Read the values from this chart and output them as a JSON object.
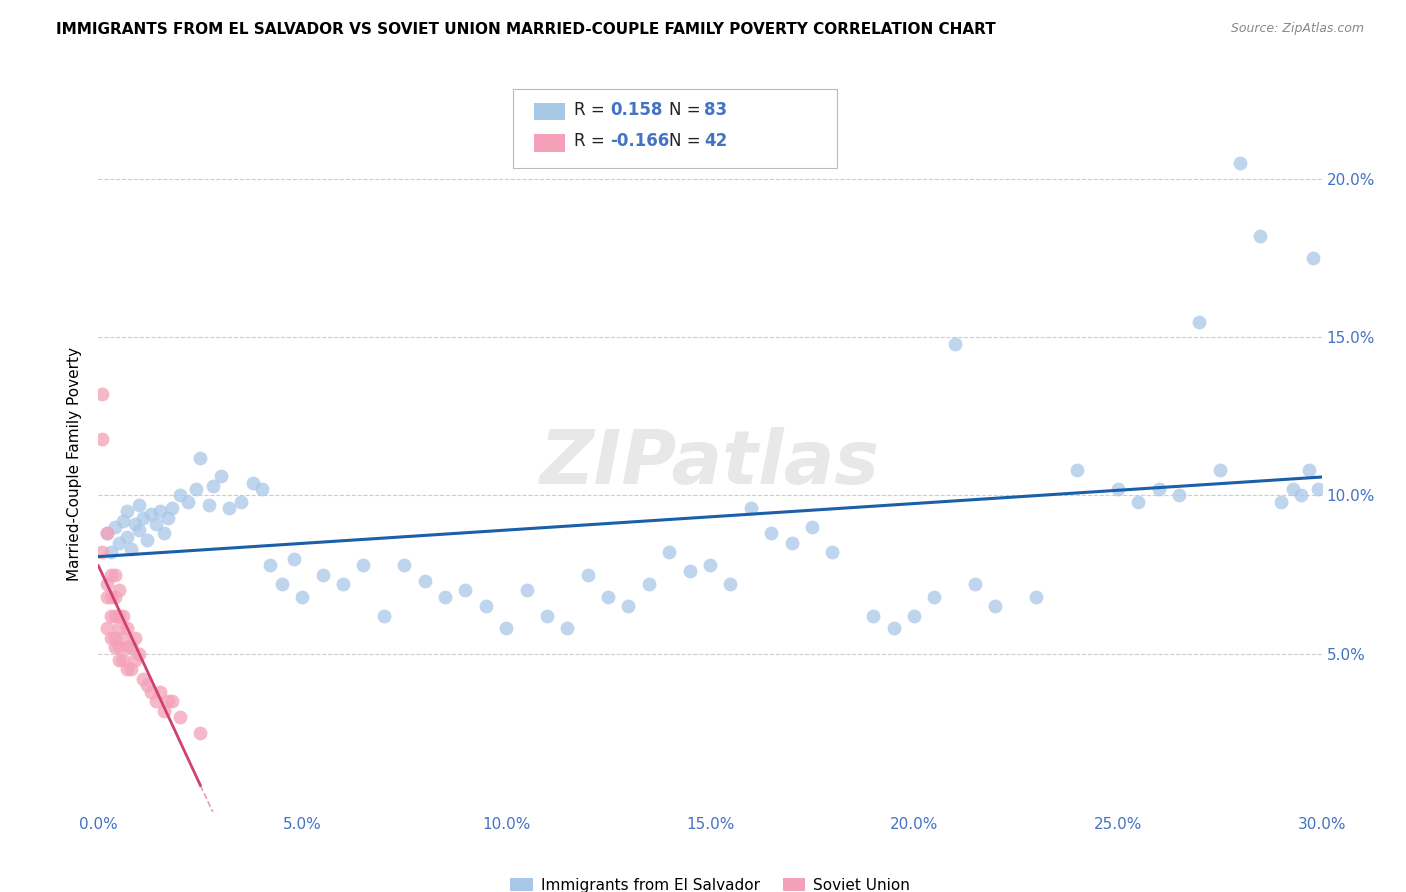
{
  "title": "IMMIGRANTS FROM EL SALVADOR VS SOVIET UNION MARRIED-COUPLE FAMILY POVERTY CORRELATION CHART",
  "source": "Source: ZipAtlas.com",
  "tick_color": "#4472c4",
  "ylabel": "Married-Couple Family Poverty",
  "xlim": [
    0.0,
    0.3
  ],
  "ylim": [
    0.0,
    0.22
  ],
  "xticks": [
    0.0,
    0.05,
    0.1,
    0.15,
    0.2,
    0.25,
    0.3
  ],
  "yticks": [
    0.05,
    0.1,
    0.15,
    0.2
  ],
  "ytick_labels": [
    "5.0%",
    "10.0%",
    "15.0%",
    "20.0%"
  ],
  "xtick_labels": [
    "0.0%",
    "5.0%",
    "10.0%",
    "15.0%",
    "20.0%",
    "25.0%",
    "30.0%"
  ],
  "color_blue": "#a8c8e8",
  "color_pink": "#f4a0b8",
  "line_blue": "#1a5fa8",
  "line_pink": "#d04070",
  "background": "#ffffff",
  "grid_color": "#cccccc",
  "watermark": "ZIPatlas",
  "legend_r1_val": "0.158",
  "legend_n1_val": "83",
  "legend_r2_val": "-0.166",
  "legend_n2_val": "42",
  "el_salvador_x": [
    0.002,
    0.003,
    0.004,
    0.005,
    0.006,
    0.007,
    0.007,
    0.008,
    0.009,
    0.01,
    0.01,
    0.011,
    0.012,
    0.013,
    0.014,
    0.015,
    0.016,
    0.017,
    0.018,
    0.02,
    0.022,
    0.024,
    0.025,
    0.027,
    0.028,
    0.03,
    0.032,
    0.035,
    0.038,
    0.04,
    0.042,
    0.045,
    0.048,
    0.05,
    0.055,
    0.06,
    0.065,
    0.07,
    0.075,
    0.08,
    0.085,
    0.09,
    0.095,
    0.1,
    0.105,
    0.11,
    0.115,
    0.12,
    0.125,
    0.13,
    0.135,
    0.14,
    0.145,
    0.15,
    0.155,
    0.16,
    0.165,
    0.17,
    0.175,
    0.18,
    0.19,
    0.195,
    0.2,
    0.205,
    0.21,
    0.215,
    0.22,
    0.23,
    0.24,
    0.25,
    0.255,
    0.26,
    0.265,
    0.27,
    0.275,
    0.28,
    0.285,
    0.29,
    0.293,
    0.295,
    0.297,
    0.298,
    0.299
  ],
  "el_salvador_y": [
    0.088,
    0.082,
    0.09,
    0.085,
    0.092,
    0.087,
    0.095,
    0.083,
    0.091,
    0.089,
    0.097,
    0.093,
    0.086,
    0.094,
    0.091,
    0.095,
    0.088,
    0.093,
    0.096,
    0.1,
    0.098,
    0.102,
    0.112,
    0.097,
    0.103,
    0.106,
    0.096,
    0.098,
    0.104,
    0.102,
    0.078,
    0.072,
    0.08,
    0.068,
    0.075,
    0.072,
    0.078,
    0.062,
    0.078,
    0.073,
    0.068,
    0.07,
    0.065,
    0.058,
    0.07,
    0.062,
    0.058,
    0.075,
    0.068,
    0.065,
    0.072,
    0.082,
    0.076,
    0.078,
    0.072,
    0.096,
    0.088,
    0.085,
    0.09,
    0.082,
    0.062,
    0.058,
    0.062,
    0.068,
    0.148,
    0.072,
    0.065,
    0.068,
    0.108,
    0.102,
    0.098,
    0.102,
    0.1,
    0.155,
    0.108,
    0.205,
    0.182,
    0.098,
    0.102,
    0.1,
    0.108,
    0.175,
    0.102
  ],
  "soviet_x": [
    0.001,
    0.001,
    0.001,
    0.002,
    0.002,
    0.002,
    0.002,
    0.003,
    0.003,
    0.003,
    0.003,
    0.004,
    0.004,
    0.004,
    0.004,
    0.004,
    0.005,
    0.005,
    0.005,
    0.005,
    0.005,
    0.006,
    0.006,
    0.006,
    0.007,
    0.007,
    0.007,
    0.008,
    0.008,
    0.009,
    0.009,
    0.01,
    0.011,
    0.012,
    0.013,
    0.014,
    0.015,
    0.016,
    0.017,
    0.018,
    0.02,
    0.025
  ],
  "soviet_y": [
    0.132,
    0.118,
    0.082,
    0.088,
    0.072,
    0.068,
    0.058,
    0.075,
    0.068,
    0.062,
    0.055,
    0.075,
    0.068,
    0.062,
    0.055,
    0.052,
    0.07,
    0.062,
    0.058,
    0.052,
    0.048,
    0.062,
    0.055,
    0.048,
    0.058,
    0.052,
    0.045,
    0.052,
    0.045,
    0.055,
    0.048,
    0.05,
    0.042,
    0.04,
    0.038,
    0.035,
    0.038,
    0.032,
    0.035,
    0.035,
    0.03,
    0.025
  ]
}
